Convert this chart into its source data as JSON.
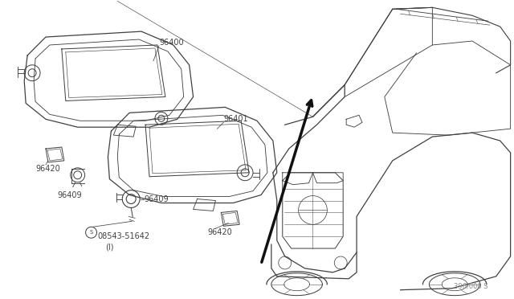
{
  "background_color": "#ffffff",
  "line_color": "#404040",
  "text_color": "#404040",
  "page_ref": "396/000 S",
  "figsize": [
    6.4,
    3.72
  ],
  "dpi": 100
}
